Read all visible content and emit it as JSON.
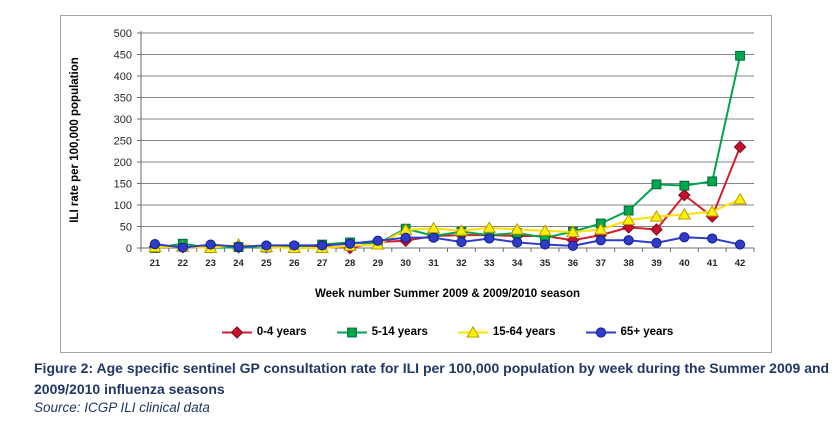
{
  "chart_data": {
    "type": "line",
    "title": "",
    "xlabel": "Week number Summer 2009 & 2009/2010 season",
    "ylabel": "ILI rate per 100,000 population",
    "ylim": [
      0,
      500
    ],
    "ytick_step": 50,
    "grid": true,
    "legend_position": "bottom",
    "gridline_color": "#848484",
    "axis_color": "#6E6E6E",
    "categories": [
      "21",
      "22",
      "23",
      "24",
      "25",
      "26",
      "27",
      "28",
      "29",
      "30",
      "31",
      "32",
      "33",
      "34",
      "35",
      "36",
      "37",
      "38",
      "39",
      "40",
      "41",
      "42"
    ],
    "series": [
      {
        "name": "0-4 years",
        "marker": "diamond",
        "color": "#D21F2C",
        "marker_fill": "#C8102E",
        "marker_stroke": "#7A0C1E",
        "values": [
          3,
          2,
          2,
          2,
          2,
          2,
          4,
          0,
          14,
          17,
          28,
          30,
          30,
          28,
          28,
          18,
          30,
          48,
          43,
          123,
          73,
          235
        ]
      },
      {
        "name": "5-14 years",
        "marker": "square",
        "color": "#00A550",
        "marker_fill": "#00A550",
        "marker_stroke": "#006B35",
        "values": [
          0,
          10,
          0,
          2,
          1,
          2,
          8,
          13,
          10,
          45,
          28,
          38,
          30,
          35,
          24,
          38,
          57,
          87,
          148,
          145,
          155,
          447
        ]
      },
      {
        "name": "15-64 years",
        "marker": "triangle",
        "color": "#FFE100",
        "marker_fill": "#FFF200",
        "marker_stroke": "#B89B00",
        "values": [
          2,
          3,
          0,
          8,
          2,
          0,
          0,
          5,
          8,
          42,
          46,
          40,
          47,
          43,
          40,
          37,
          43,
          65,
          73,
          78,
          85,
          113
        ]
      },
      {
        "name": "65+ years",
        "marker": "circle",
        "color": "#2E3CC8",
        "marker_fill": "#2E3CC8",
        "marker_stroke": "#141E8C",
        "values": [
          9,
          1,
          8,
          3,
          6,
          6,
          6,
          10,
          17,
          24,
          24,
          14,
          22,
          13,
          8,
          5,
          18,
          18,
          12,
          25,
          22,
          8
        ]
      }
    ]
  },
  "caption": {
    "text": "Figure 2: Age specific sentinel GP consultation rate for ILI per 100,000 population by week during the Summer 2009 and 2009/2010 influenza seasons",
    "source": "Source: ICGP ILI clinical data",
    "color": "#1F3864"
  }
}
